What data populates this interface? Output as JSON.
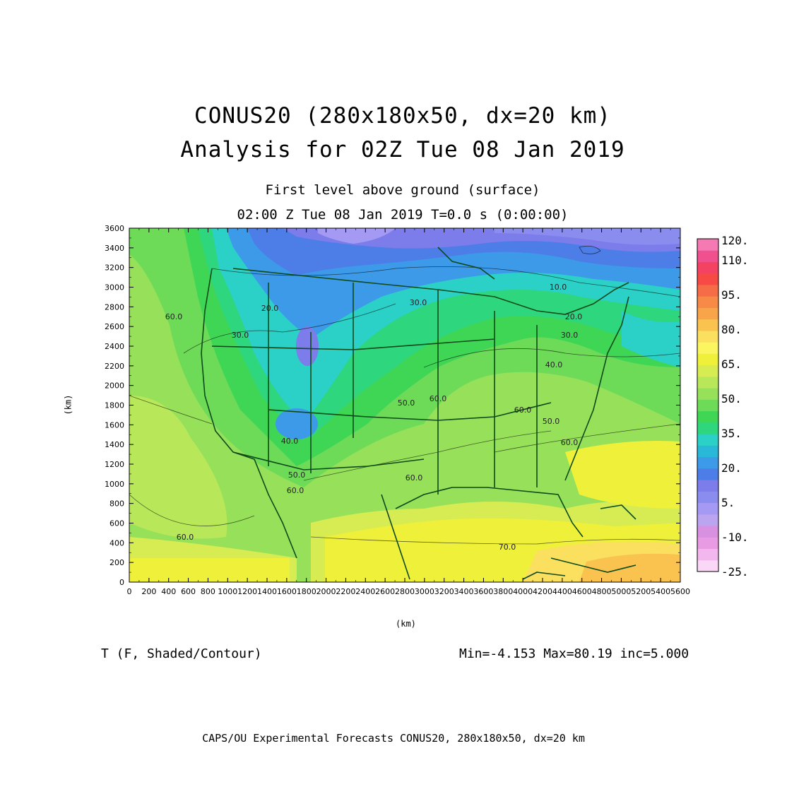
{
  "header": {
    "title1": "CONUS20 (280x180x50, dx=20 km)",
    "title2": "Analysis for 02Z Tue 08 Jan 2019",
    "subtitle1": "First level above ground (surface)",
    "subtitle2": "02:00 Z Tue 08 Jan 2019    T=0.0 s (0:00:00)"
  },
  "axes": {
    "x_unit": "(km)",
    "y_unit": "(km)",
    "x_ticks": [
      "0",
      "200",
      "400",
      "600",
      "800",
      "1000",
      "1200",
      "1400",
      "1600",
      "1800",
      "2000",
      "2200",
      "2400",
      "2600",
      "2800",
      "3000",
      "3200",
      "3400",
      "3600",
      "3800",
      "4000",
      "4200",
      "4400",
      "4600",
      "4800",
      "5000",
      "5200",
      "5400",
      "5600"
    ],
    "y_ticks": [
      "0",
      "200",
      "400",
      "600",
      "800",
      "1000",
      "1200",
      "1400",
      "1600",
      "1800",
      "2000",
      "2200",
      "2400",
      "2600",
      "2800",
      "3000",
      "3200",
      "3400",
      "3600"
    ],
    "xlim": [
      0,
      5600
    ],
    "ylim": [
      0,
      3600
    ]
  },
  "colorbar": {
    "colors": [
      "#fad6f7",
      "#f2b8ee",
      "#e89ae3",
      "#d890e0",
      "#bba4f0",
      "#a49af3",
      "#8a8cee",
      "#7c7cea",
      "#4d7ee8",
      "#3d9ae8",
      "#2ab8d8",
      "#2bd0c6",
      "#2ed67e",
      "#3fd655",
      "#6edb58",
      "#96e05a",
      "#b8e85a",
      "#d6ec52",
      "#eef03a",
      "#fbf560",
      "#fbe060",
      "#fac24e",
      "#f8a44a",
      "#f88a48",
      "#f66c46",
      "#f84a44",
      "#f44262",
      "#f0508e",
      "#f57ab3"
    ],
    "labels": [
      "-25.",
      "-10.",
      "5.",
      "20.",
      "35.",
      "50.",
      "65.",
      "80.",
      "95.",
      "110.",
      "120."
    ]
  },
  "map": {
    "contour_labels": [
      "60.0",
      "60.0",
      "70.0",
      "50.0",
      "60.0",
      "40.0",
      "30.0",
      "20.0",
      "30.0",
      "10.0",
      "20.0",
      "30.0",
      "40.0",
      "50.0",
      "60.0",
      "50.0",
      "60.0",
      "60.0",
      "60.0"
    ]
  },
  "variable_label": "T (F, Shaded/Contour)",
  "stats": "Min=-4.153 Max=80.19 inc=5.000",
  "footer": "CAPS/OU Experimental Forecasts  CONUS20, 280x180x50, dx=20 km"
}
